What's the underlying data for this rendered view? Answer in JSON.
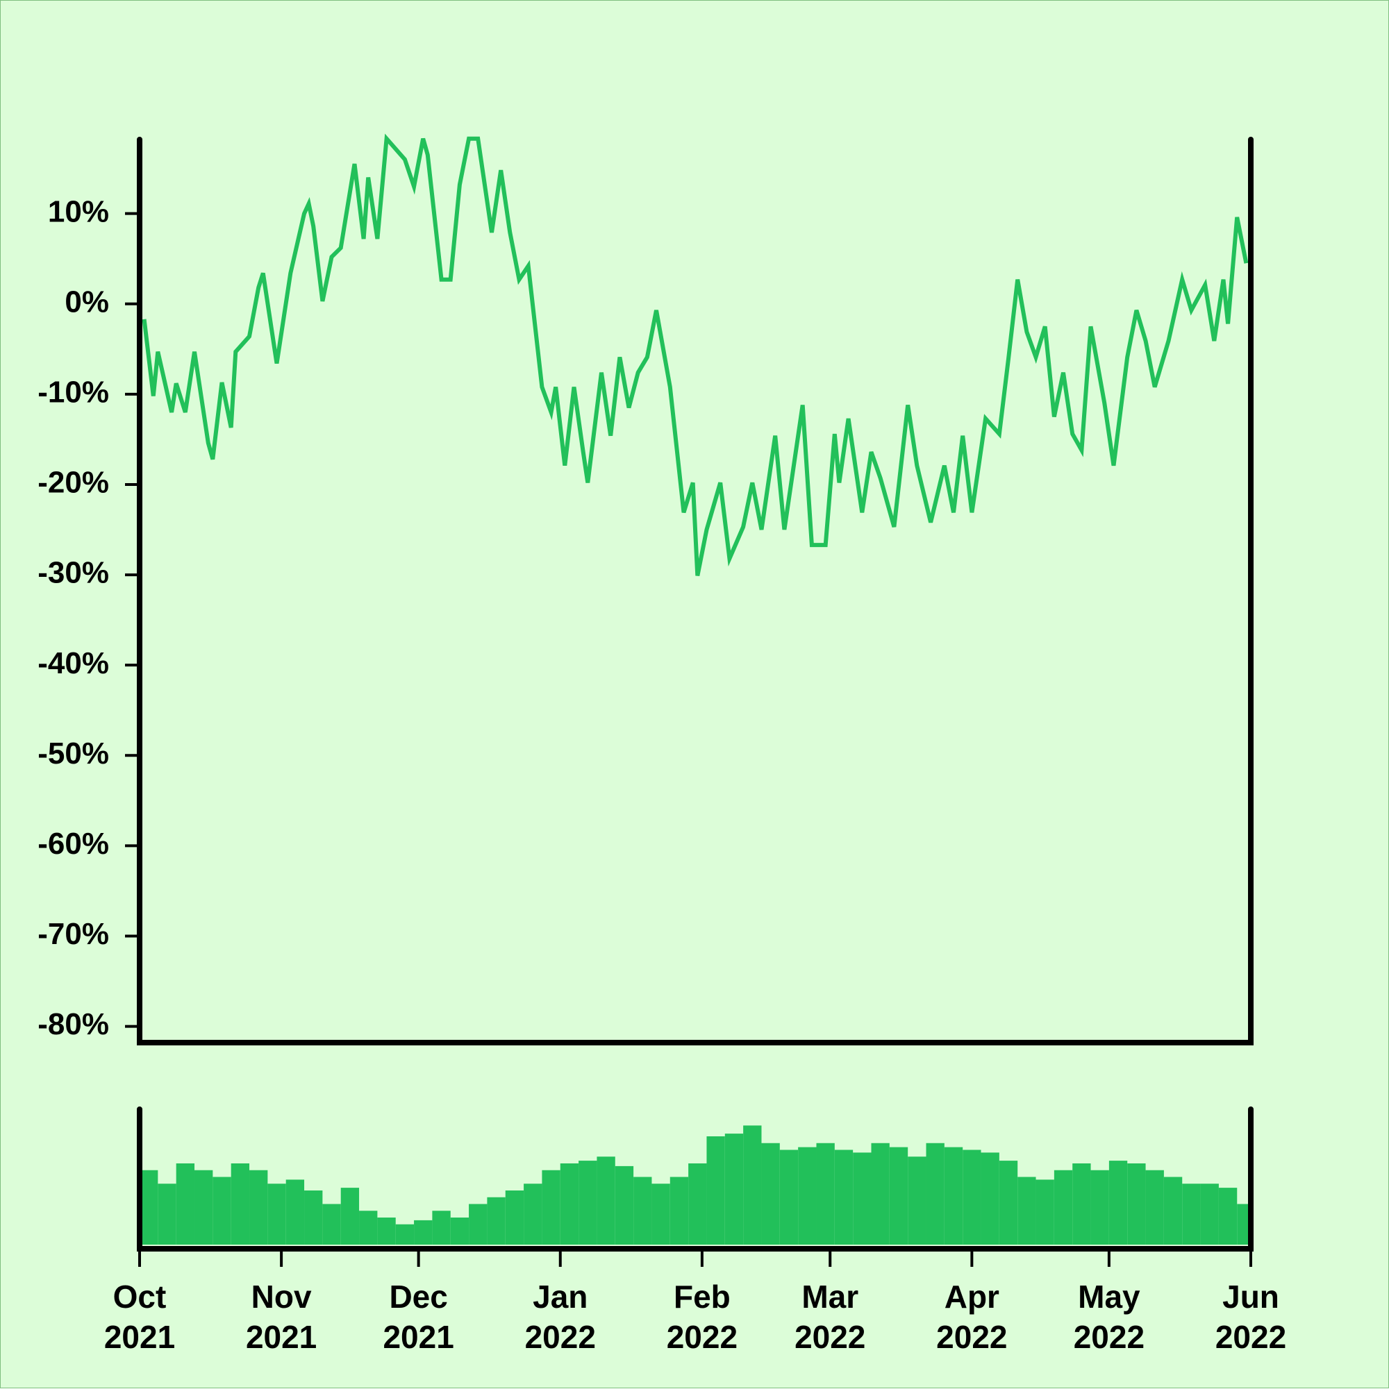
{
  "chart_data": [
    {
      "type": "line",
      "color": "#22c05a",
      "xlim": [
        "2021-10-01",
        "2022-06-01"
      ],
      "ylim": [
        -81.8,
        18.2
      ],
      "yticks": [
        {
          "value": 10,
          "label": "10%"
        },
        {
          "value": 0,
          "label": "0%"
        },
        {
          "value": -10,
          "label": "-10%"
        },
        {
          "value": -20,
          "label": "-20%"
        },
        {
          "value": -30,
          "label": "-30%"
        },
        {
          "value": -40,
          "label": "-40%"
        },
        {
          "value": -50,
          "label": "-50%"
        },
        {
          "value": -60,
          "label": "-60%"
        },
        {
          "value": -70,
          "label": "-70%"
        },
        {
          "value": -80,
          "label": "-80%"
        }
      ],
      "x": [
        "2021-10-02",
        "2021-10-04",
        "2021-10-05",
        "2021-10-08",
        "2021-10-09",
        "2021-10-11",
        "2021-10-13",
        "2021-10-16",
        "2021-10-17",
        "2021-10-19",
        "2021-10-21",
        "2021-10-22",
        "2021-10-25",
        "2021-10-27",
        "2021-10-28",
        "2021-10-31",
        "2021-11-03",
        "2021-11-06",
        "2021-11-07",
        "2021-11-08",
        "2021-11-10",
        "2021-11-12",
        "2021-11-14",
        "2021-11-17",
        "2021-11-19",
        "2021-11-20",
        "2021-11-22",
        "2021-11-24",
        "2021-11-28",
        "2021-11-30",
        "2021-12-02",
        "2021-12-03",
        "2021-12-06",
        "2021-12-08",
        "2021-12-10",
        "2021-12-12",
        "2021-12-14",
        "2021-12-17",
        "2021-12-19",
        "2021-12-21",
        "2021-12-23",
        "2021-12-25",
        "2021-12-28",
        "2021-12-30",
        "2021-12-31",
        "2022-01-02",
        "2022-01-04",
        "2022-01-06",
        "2022-01-07",
        "2022-01-10",
        "2022-01-12",
        "2022-01-14",
        "2022-01-16",
        "2022-01-18",
        "2022-01-20",
        "2022-01-22",
        "2022-01-25",
        "2022-01-28",
        "2022-01-30",
        "2022-01-31",
        "2022-02-02",
        "2022-02-05",
        "2022-02-07",
        "2022-02-10",
        "2022-02-12",
        "2022-02-14",
        "2022-02-17",
        "2022-02-19",
        "2022-02-23",
        "2022-02-25",
        "2022-02-28",
        "2022-03-02",
        "2022-03-03",
        "2022-03-05",
        "2022-03-08",
        "2022-03-10",
        "2022-03-12",
        "2022-03-15",
        "2022-03-18",
        "2022-03-20",
        "2022-03-23",
        "2022-03-26",
        "2022-03-28",
        "2022-03-30",
        "2022-04-01",
        "2022-04-04",
        "2022-04-07",
        "2022-04-09",
        "2022-04-11",
        "2022-04-13",
        "2022-04-15",
        "2022-04-17",
        "2022-04-19",
        "2022-04-21",
        "2022-04-23",
        "2022-04-25",
        "2022-04-27",
        "2022-04-30",
        "2022-05-02",
        "2022-05-05",
        "2022-05-07",
        "2022-05-09",
        "2022-05-11",
        "2022-05-14",
        "2022-05-17",
        "2022-05-19",
        "2022-05-22",
        "2022-05-24",
        "2022-05-26",
        "2022-05-27",
        "2022-05-29",
        "2022-05-31"
      ],
      "values": [
        -1.7,
        -10.2,
        -5.3,
        -12,
        -8.8,
        -12,
        -5.3,
        -15.4,
        -17.2,
        -8.7,
        -13.7,
        -5.3,
        -3.6,
        1.8,
        3.4,
        -6.6,
        3.4,
        10,
        11.1,
        8.6,
        0.3,
        5.2,
        6.2,
        15.5,
        7.2,
        14,
        7.2,
        18.3,
        16,
        13,
        18.3,
        16.5,
        2.7,
        2.7,
        13.2,
        18.3,
        18.3,
        7.9,
        14.8,
        7.9,
        2.7,
        4.2,
        -9.2,
        -12,
        -9.2,
        -17.9,
        -9.2,
        -16.4,
        -19.8,
        -7.6,
        -14.6,
        -5.9,
        -11.5,
        -7.6,
        -5.9,
        -0.7,
        -9.2,
        -23.1,
        -19.8,
        -30.1,
        -25,
        -19.8,
        -28.2,
        -24.7,
        -19.8,
        -25,
        -14.6,
        -25,
        -11.2,
        -26.7,
        -26.7,
        -14.4,
        -19.8,
        -12.7,
        -23.1,
        -16.4,
        -19.3,
        -24.7,
        -11.2,
        -17.9,
        -24.2,
        -17.9,
        -23.1,
        -14.6,
        -23.1,
        -12.7,
        -14.4,
        -6.1,
        2.7,
        -3.1,
        -5.9,
        -2.5,
        -12.5,
        -7.6,
        -14.4,
        -16.2,
        -2.5,
        -11,
        -17.9,
        -5.9,
        -0.7,
        -4.1,
        -9.2,
        -4.1,
        2.7,
        -0.7,
        2.1,
        -4.1,
        2.7,
        -2.2,
        9.6,
        4.5
      ]
    },
    {
      "type": "bar",
      "color": "#22c05a",
      "xlim": [
        "2021-10-01",
        "2022-06-01"
      ],
      "ylim": [
        0,
        100
      ],
      "xticks": [
        {
          "value": "2021-10-01",
          "label": "Oct 2021"
        },
        {
          "value": "2021-11-01",
          "label": "Nov 2021"
        },
        {
          "value": "2021-12-01",
          "label": "Dec 2021"
        },
        {
          "value": "2022-01-01",
          "label": "Jan 2022"
        },
        {
          "value": "2022-02-01",
          "label": "Feb 2022"
        },
        {
          "value": "2022-03-01",
          "label": "Mar 2022"
        },
        {
          "value": "2022-04-01",
          "label": "Apr 2022"
        },
        {
          "value": "2022-05-01",
          "label": "May 2022"
        },
        {
          "value": "2022-06-01",
          "label": "Jun 2022"
        }
      ],
      "x": [
        "2021-10-01",
        "2021-10-05",
        "2021-10-09",
        "2021-10-13",
        "2021-10-17",
        "2021-10-21",
        "2021-10-25",
        "2021-10-29",
        "2021-11-02",
        "2021-11-06",
        "2021-11-10",
        "2021-11-14",
        "2021-11-18",
        "2021-11-22",
        "2021-11-26",
        "2021-11-30",
        "2021-12-04",
        "2021-12-08",
        "2021-12-12",
        "2021-12-16",
        "2021-12-20",
        "2021-12-24",
        "2021-12-28",
        "2022-01-01",
        "2022-01-05",
        "2022-01-09",
        "2022-01-13",
        "2022-01-17",
        "2022-01-21",
        "2022-01-25",
        "2022-01-29",
        "2022-02-02",
        "2022-02-06",
        "2022-02-10",
        "2022-02-14",
        "2022-02-18",
        "2022-02-22",
        "2022-02-26",
        "2022-03-02",
        "2022-03-06",
        "2022-03-10",
        "2022-03-14",
        "2022-03-18",
        "2022-03-22",
        "2022-03-26",
        "2022-03-30",
        "2022-04-03",
        "2022-04-07",
        "2022-04-11",
        "2022-04-15",
        "2022-04-19",
        "2022-04-23",
        "2022-04-27",
        "2022-05-01",
        "2022-05-05",
        "2022-05-09",
        "2022-05-13",
        "2022-05-17",
        "2022-05-21",
        "2022-05-25",
        "2022-05-29"
      ],
      "values": [
        55,
        45,
        60,
        55,
        50,
        60,
        55,
        45,
        48,
        40,
        30,
        42,
        25,
        20,
        15,
        18,
        25,
        20,
        30,
        35,
        40,
        45,
        55,
        60,
        62,
        65,
        58,
        50,
        45,
        50,
        60,
        80,
        82,
        88,
        75,
        70,
        72,
        75,
        70,
        68,
        75,
        72,
        65,
        75,
        72,
        70,
        68,
        62,
        50,
        48,
        55,
        60,
        55,
        62,
        60,
        55,
        50,
        45,
        45,
        42,
        30
      ]
    }
  ]
}
